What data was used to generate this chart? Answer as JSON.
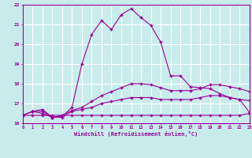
{
  "xlabel": "Windchill (Refroidissement éolien,°C)",
  "xlim": [
    0,
    23
  ],
  "ylim": [
    16,
    22
  ],
  "yticks": [
    16,
    17,
    18,
    19,
    20,
    21,
    22
  ],
  "xticks": [
    0,
    1,
    2,
    3,
    4,
    5,
    6,
    7,
    8,
    9,
    10,
    11,
    12,
    13,
    14,
    15,
    16,
    17,
    18,
    19,
    20,
    21,
    22,
    23
  ],
  "bg_color": "#c8ecec",
  "line_color": "#990099",
  "grid_color": "#aadddd",
  "series": {
    "flat": [
      16.4,
      16.4,
      16.4,
      16.4,
      16.4,
      16.4,
      16.4,
      16.4,
      16.4,
      16.4,
      16.4,
      16.4,
      16.4,
      16.4,
      16.4,
      16.4,
      16.4,
      16.4,
      16.4,
      16.4,
      16.4,
      16.4,
      16.4,
      16.5
    ],
    "low": [
      16.4,
      16.6,
      16.5,
      16.3,
      16.3,
      16.6,
      16.7,
      16.8,
      17.0,
      17.1,
      17.2,
      17.3,
      17.3,
      17.3,
      17.2,
      17.2,
      17.2,
      17.2,
      17.3,
      17.4,
      17.4,
      17.3,
      17.2,
      17.15
    ],
    "mid": [
      16.4,
      16.6,
      16.6,
      16.3,
      16.4,
      16.65,
      16.8,
      17.1,
      17.4,
      17.6,
      17.8,
      18.0,
      18.0,
      17.95,
      17.8,
      17.65,
      17.65,
      17.65,
      17.75,
      17.95,
      17.95,
      17.85,
      17.75,
      17.6
    ],
    "main": [
      16.4,
      16.6,
      16.7,
      16.3,
      16.35,
      16.8,
      19.0,
      20.5,
      21.2,
      20.75,
      21.5,
      21.8,
      21.35,
      20.95,
      20.1,
      18.4,
      18.4,
      17.85,
      17.8,
      17.75,
      17.5,
      17.3,
      17.2,
      16.55
    ]
  }
}
